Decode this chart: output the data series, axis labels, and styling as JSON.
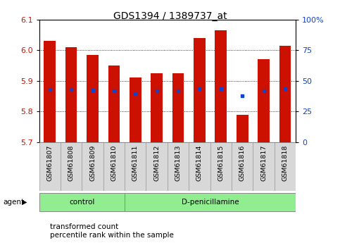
{
  "title": "GDS1394 / 1389737_at",
  "samples": [
    "GSM61807",
    "GSM61808",
    "GSM61809",
    "GSM61810",
    "GSM61811",
    "GSM61812",
    "GSM61813",
    "GSM61814",
    "GSM61815",
    "GSM61816",
    "GSM61817",
    "GSM61818"
  ],
  "bar_bottoms": [
    5.7,
    5.7,
    5.7,
    5.7,
    5.7,
    5.7,
    5.7,
    5.7,
    5.7,
    5.7,
    5.7,
    5.7
  ],
  "bar_tops": [
    6.03,
    6.01,
    5.985,
    5.95,
    5.91,
    5.925,
    5.925,
    6.04,
    6.065,
    5.79,
    5.97,
    6.015
  ],
  "blue_dot_y": [
    5.872,
    5.872,
    5.87,
    5.868,
    5.857,
    5.868,
    5.868,
    5.875,
    5.875,
    5.852,
    5.868,
    5.875
  ],
  "ylim": [
    5.7,
    6.1
  ],
  "yticks_left": [
    5.7,
    5.8,
    5.9,
    6.0,
    6.1
  ],
  "yticks_right_vals": [
    0,
    25,
    50,
    75,
    100
  ],
  "yticks_right_labels": [
    "0",
    "25",
    "50",
    "75",
    "100%"
  ],
  "right_ylim": [
    0,
    100
  ],
  "bar_color": "#cc1100",
  "dot_color": "#1144cc",
  "control_count": 4,
  "control_label": "control",
  "treatment_label": "D-penicillamine",
  "agent_label": "agent",
  "legend_bar_label": "transformed count",
  "legend_dot_label": "percentile rank within the sample",
  "title_fontsize": 10,
  "tick_fontsize": 8,
  "label_fontsize": 8,
  "bar_width": 0.55,
  "light_green": "#90EE90"
}
